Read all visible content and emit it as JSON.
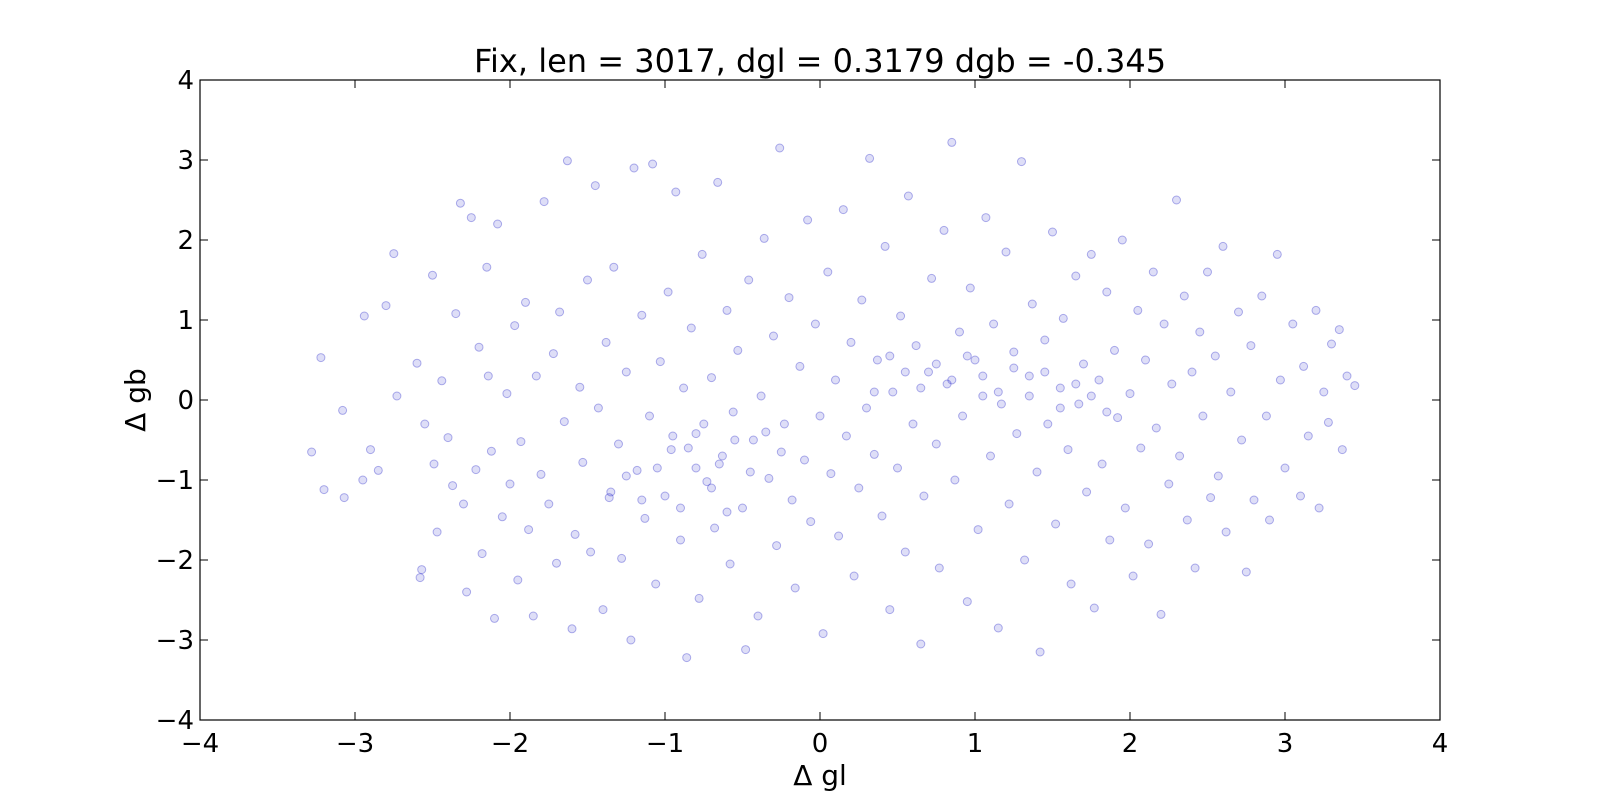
{
  "chart_data": {
    "type": "scatter",
    "title": "Fix, len = 3017, dgl = 0.3179 dgb = -0.345",
    "xlabel": "Δ gl",
    "ylabel": "Δ gb",
    "xlim": [
      -4,
      4
    ],
    "ylim": [
      -4,
      4
    ],
    "x_ticks": [
      "−4",
      "−3",
      "−2",
      "−1",
      "0",
      "1",
      "2",
      "3",
      "4"
    ],
    "y_ticks": [
      "−4",
      "−3",
      "−2",
      "−1",
      "0",
      "1",
      "2",
      "3",
      "4"
    ],
    "grid": false,
    "legend": "none",
    "point_color": "#0000bf",
    "point_count": 3017,
    "points": [
      [
        -3.28,
        -0.65
      ],
      [
        -3.22,
        0.53
      ],
      [
        -3.2,
        -1.12
      ],
      [
        -3.08,
        -0.13
      ],
      [
        -3.07,
        -1.22
      ],
      [
        -2.95,
        -1.0
      ],
      [
        -2.94,
        1.05
      ],
      [
        -2.9,
        -0.62
      ],
      [
        -2.85,
        -0.88
      ],
      [
        -2.8,
        1.18
      ],
      [
        -2.75,
        1.83
      ],
      [
        -2.73,
        0.05
      ],
      [
        -2.6,
        0.46
      ],
      [
        -2.58,
        -2.22
      ],
      [
        -2.57,
        -2.12
      ],
      [
        -2.55,
        -0.3
      ],
      [
        -2.5,
        1.56
      ],
      [
        -2.49,
        -0.8
      ],
      [
        -2.47,
        -1.65
      ],
      [
        -2.44,
        0.24
      ],
      [
        -2.4,
        -0.47
      ],
      [
        -2.37,
        -1.07
      ],
      [
        -2.35,
        1.08
      ],
      [
        -2.32,
        2.46
      ],
      [
        -2.3,
        -1.3
      ],
      [
        -2.28,
        -2.4
      ],
      [
        -2.25,
        2.28
      ],
      [
        -2.22,
        -0.87
      ],
      [
        -2.2,
        0.66
      ],
      [
        -2.18,
        -1.92
      ],
      [
        -2.15,
        1.66
      ],
      [
        -2.14,
        0.3
      ],
      [
        -2.12,
        -0.64
      ],
      [
        -2.1,
        -2.73
      ],
      [
        -2.08,
        2.2
      ],
      [
        -2.05,
        -1.46
      ],
      [
        -2.02,
        0.08
      ],
      [
        -2.0,
        -1.05
      ],
      [
        -1.97,
        0.93
      ],
      [
        -1.95,
        -2.25
      ],
      [
        -1.93,
        -0.52
      ],
      [
        -1.9,
        1.22
      ],
      [
        -1.88,
        -1.62
      ],
      [
        -1.85,
        -2.7
      ],
      [
        -1.83,
        0.3
      ],
      [
        -1.8,
        -0.93
      ],
      [
        -1.78,
        2.48
      ],
      [
        -1.75,
        -1.3
      ],
      [
        -1.72,
        0.58
      ],
      [
        -1.7,
        -2.04
      ],
      [
        -1.68,
        1.1
      ],
      [
        -1.65,
        -0.27
      ],
      [
        -1.63,
        2.99
      ],
      [
        -1.6,
        -2.86
      ],
      [
        -1.58,
        -1.68
      ],
      [
        -1.55,
        0.16
      ],
      [
        -1.53,
        -0.78
      ],
      [
        -1.5,
        1.5
      ],
      [
        -1.48,
        -1.9
      ],
      [
        -1.45,
        2.68
      ],
      [
        -1.43,
        -0.1
      ],
      [
        -1.4,
        -2.62
      ],
      [
        -1.38,
        0.72
      ],
      [
        -1.36,
        -1.22
      ],
      [
        -1.33,
        1.66
      ],
      [
        -1.3,
        -0.55
      ],
      [
        -1.28,
        -1.98
      ],
      [
        -1.25,
        0.35
      ],
      [
        -1.22,
        -3.0
      ],
      [
        -1.2,
        2.9
      ],
      [
        -1.18,
        -0.88
      ],
      [
        -1.15,
        1.06
      ],
      [
        -1.13,
        -1.48
      ],
      [
        -1.1,
        -0.2
      ],
      [
        -1.08,
        2.95
      ],
      [
        -1.06,
        -2.3
      ],
      [
        -1.03,
        0.48
      ],
      [
        -1.0,
        -1.2
      ],
      [
        -0.98,
        1.35
      ],
      [
        -0.96,
        -0.62
      ],
      [
        -0.93,
        2.6
      ],
      [
        -0.9,
        -1.75
      ],
      [
        -0.88,
        0.15
      ],
      [
        -0.86,
        -3.22
      ],
      [
        -0.83,
        0.9
      ],
      [
        -0.8,
        -0.42
      ],
      [
        -0.78,
        -2.48
      ],
      [
        -0.76,
        1.82
      ],
      [
        -0.73,
        -1.02
      ],
      [
        -0.7,
        0.28
      ],
      [
        -0.68,
        -1.6
      ],
      [
        -0.66,
        2.72
      ],
      [
        -0.63,
        -0.7
      ],
      [
        -0.6,
        1.12
      ],
      [
        -0.58,
        -2.05
      ],
      [
        -0.56,
        -0.15
      ],
      [
        -0.53,
        0.62
      ],
      [
        -0.5,
        -1.35
      ],
      [
        -0.48,
        -3.12
      ],
      [
        -0.46,
        1.5
      ],
      [
        -0.43,
        -0.5
      ],
      [
        -0.4,
        -2.7
      ],
      [
        -0.38,
        0.05
      ],
      [
        -0.36,
        2.02
      ],
      [
        -0.33,
        -0.98
      ],
      [
        -0.3,
        0.8
      ],
      [
        -0.28,
        -1.82
      ],
      [
        -0.26,
        3.15
      ],
      [
        -0.23,
        -0.3
      ],
      [
        -0.2,
        1.28
      ],
      [
        -0.18,
        -1.25
      ],
      [
        -0.16,
        -2.35
      ],
      [
        -0.13,
        0.42
      ],
      [
        -0.1,
        -0.75
      ],
      [
        -0.08,
        2.25
      ],
      [
        -0.06,
        -1.52
      ],
      [
        -0.03,
        0.95
      ],
      [
        0.0,
        -0.2
      ],
      [
        0.02,
        -2.92
      ],
      [
        0.05,
        1.6
      ],
      [
        0.07,
        -0.92
      ],
      [
        0.1,
        0.25
      ],
      [
        0.12,
        -1.7
      ],
      [
        0.15,
        2.38
      ],
      [
        0.17,
        -0.45
      ],
      [
        0.2,
        0.72
      ],
      [
        0.22,
        -2.2
      ],
      [
        0.25,
        -1.1
      ],
      [
        0.27,
        1.25
      ],
      [
        0.3,
        -0.1
      ],
      [
        0.32,
        3.02
      ],
      [
        0.35,
        -0.68
      ],
      [
        0.37,
        0.5
      ],
      [
        0.4,
        -1.45
      ],
      [
        0.42,
        1.92
      ],
      [
        0.45,
        -2.62
      ],
      [
        0.47,
        0.1
      ],
      [
        0.5,
        -0.85
      ],
      [
        0.52,
        1.05
      ],
      [
        0.55,
        -1.9
      ],
      [
        0.57,
        2.55
      ],
      [
        0.6,
        -0.3
      ],
      [
        0.62,
        0.68
      ],
      [
        0.65,
        -3.05
      ],
      [
        0.67,
        -1.2
      ],
      [
        0.7,
        0.35
      ],
      [
        0.72,
        1.52
      ],
      [
        0.75,
        -0.55
      ],
      [
        0.77,
        -2.1
      ],
      [
        0.8,
        2.12
      ],
      [
        0.82,
        0.2
      ],
      [
        0.85,
        3.22
      ],
      [
        0.87,
        -1.0
      ],
      [
        0.9,
        0.85
      ],
      [
        0.92,
        -0.2
      ],
      [
        0.95,
        -2.52
      ],
      [
        0.97,
        1.4
      ],
      [
        1.0,
        0.5
      ],
      [
        1.02,
        -1.62
      ],
      [
        1.05,
        0.05
      ],
      [
        1.07,
        2.28
      ],
      [
        1.1,
        -0.7
      ],
      [
        1.12,
        0.95
      ],
      [
        1.15,
        -2.85
      ],
      [
        1.17,
        -0.05
      ],
      [
        1.2,
        1.85
      ],
      [
        1.22,
        -1.3
      ],
      [
        1.25,
        0.6
      ],
      [
        1.27,
        -0.42
      ],
      [
        1.3,
        2.98
      ],
      [
        1.32,
        -2.0
      ],
      [
        1.35,
        0.3
      ],
      [
        1.37,
        1.2
      ],
      [
        1.4,
        -0.9
      ],
      [
        1.42,
        -3.15
      ],
      [
        1.45,
        0.75
      ],
      [
        1.47,
        -0.3
      ],
      [
        1.5,
        2.1
      ],
      [
        1.52,
        -1.55
      ],
      [
        1.55,
        0.15
      ],
      [
        1.57,
        1.02
      ],
      [
        1.6,
        -0.62
      ],
      [
        1.62,
        -2.3
      ],
      [
        1.65,
        1.55
      ],
      [
        1.67,
        -0.05
      ],
      [
        1.7,
        0.45
      ],
      [
        1.72,
        -1.15
      ],
      [
        1.75,
        1.82
      ],
      [
        1.77,
        -2.6
      ],
      [
        1.8,
        0.25
      ],
      [
        1.82,
        -0.8
      ],
      [
        1.85,
        1.35
      ],
      [
        1.87,
        -1.75
      ],
      [
        1.9,
        0.62
      ],
      [
        1.92,
        -0.22
      ],
      [
        1.95,
        2.0
      ],
      [
        1.97,
        -1.35
      ],
      [
        2.0,
        0.08
      ],
      [
        2.02,
        -2.2
      ],
      [
        2.05,
        1.12
      ],
      [
        2.07,
        -0.6
      ],
      [
        2.1,
        0.5
      ],
      [
        2.12,
        -1.8
      ],
      [
        2.15,
        1.6
      ],
      [
        2.17,
        -0.35
      ],
      [
        2.2,
        -2.68
      ],
      [
        2.22,
        0.95
      ],
      [
        2.25,
        -1.05
      ],
      [
        2.27,
        0.2
      ],
      [
        2.3,
        2.5
      ],
      [
        2.32,
        -0.7
      ],
      [
        2.35,
        1.3
      ],
      [
        2.37,
        -1.5
      ],
      [
        2.4,
        0.35
      ],
      [
        2.42,
        -2.1
      ],
      [
        2.45,
        0.85
      ],
      [
        2.47,
        -0.2
      ],
      [
        2.5,
        1.6
      ],
      [
        2.52,
        -1.22
      ],
      [
        2.55,
        0.55
      ],
      [
        2.57,
        -0.95
      ],
      [
        2.6,
        1.92
      ],
      [
        2.62,
        -1.65
      ],
      [
        2.65,
        0.1
      ],
      [
        2.7,
        1.1
      ],
      [
        2.72,
        -0.5
      ],
      [
        2.75,
        -2.15
      ],
      [
        2.78,
        0.68
      ],
      [
        2.8,
        -1.25
      ],
      [
        2.85,
        1.3
      ],
      [
        2.88,
        -0.2
      ],
      [
        2.9,
        -1.5
      ],
      [
        2.95,
        1.82
      ],
      [
        2.97,
        0.25
      ],
      [
        3.0,
        -0.85
      ],
      [
        3.05,
        0.95
      ],
      [
        3.1,
        -1.2
      ],
      [
        3.12,
        0.42
      ],
      [
        3.15,
        -0.45
      ],
      [
        3.2,
        1.12
      ],
      [
        3.22,
        -1.35
      ],
      [
        3.25,
        0.1
      ],
      [
        3.28,
        -0.28
      ],
      [
        3.3,
        0.7
      ],
      [
        3.35,
        0.88
      ],
      [
        3.37,
        -0.62
      ],
      [
        3.4,
        0.3
      ],
      [
        3.45,
        0.18
      ],
      [
        -0.95,
        -0.45
      ],
      [
        -0.85,
        -0.6
      ],
      [
        -0.75,
        -0.3
      ],
      [
        -0.65,
        -0.8
      ],
      [
        -0.55,
        -0.5
      ],
      [
        -0.45,
        -0.9
      ],
      [
        -0.35,
        -0.4
      ],
      [
        -0.25,
        -0.65
      ],
      [
        0.55,
        0.35
      ],
      [
        0.65,
        0.15
      ],
      [
        0.75,
        0.45
      ],
      [
        0.85,
        0.25
      ],
      [
        0.95,
        0.55
      ],
      [
        1.05,
        0.3
      ],
      [
        1.15,
        0.1
      ],
      [
        1.25,
        0.4
      ],
      [
        1.35,
        0.05
      ],
      [
        1.45,
        0.35
      ],
      [
        1.55,
        -0.1
      ],
      [
        1.65,
        0.2
      ],
      [
        1.75,
        0.05
      ],
      [
        1.85,
        -0.15
      ],
      [
        0.45,
        0.55
      ],
      [
        0.35,
        0.1
      ],
      [
        -1.15,
        -1.25
      ],
      [
        -1.05,
        -0.85
      ],
      [
        -1.25,
        -0.95
      ],
      [
        -1.35,
        -1.15
      ],
      [
        -0.9,
        -1.35
      ],
      [
        -0.7,
        -1.1
      ],
      [
        -0.8,
        -0.85
      ],
      [
        -0.6,
        -1.4
      ]
    ]
  }
}
